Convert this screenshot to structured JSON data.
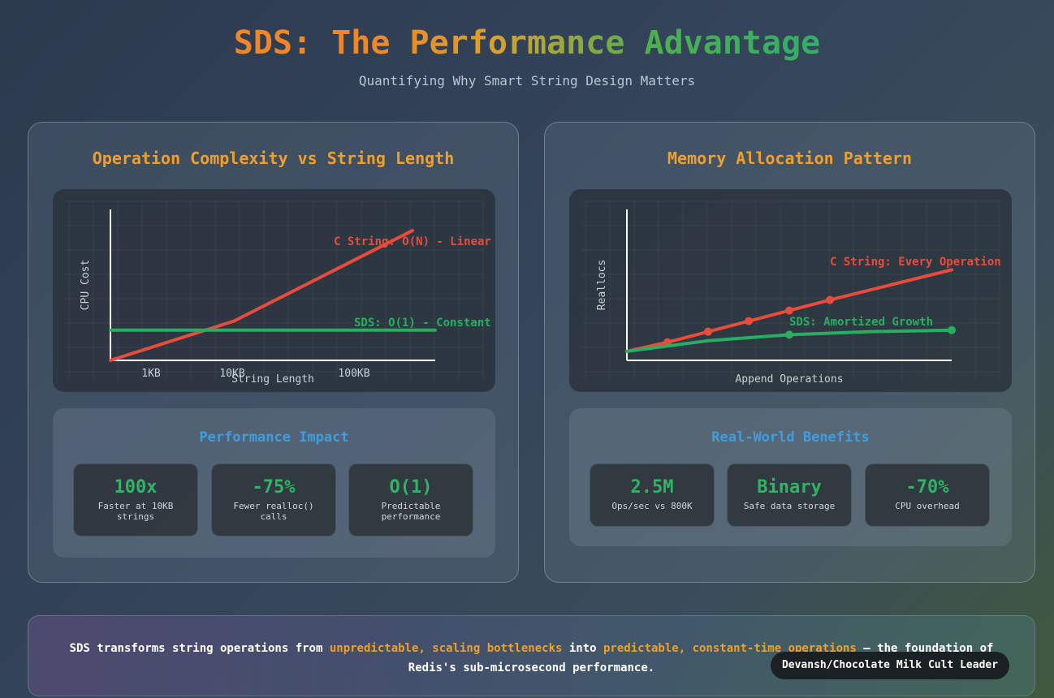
{
  "header": {
    "title": "SDS: The Performance Advantage",
    "subtitle": "Quantifying Why Smart String Design Matters"
  },
  "left_panel": {
    "title": "Operation Complexity vs String Length",
    "stats_title": "Performance Impact",
    "stats": [
      {
        "value": "100x",
        "label": "Faster at 10KB strings"
      },
      {
        "value": "-75%",
        "label": "Fewer realloc() calls"
      },
      {
        "value": "O(1)",
        "label": "Predictable performance"
      }
    ]
  },
  "right_panel": {
    "title": "Memory Allocation Pattern",
    "stats_title": "Real-World Benefits",
    "stats": [
      {
        "value": "2.5M",
        "label": "Ops/sec vs 800K"
      },
      {
        "value": "Binary",
        "label": "Safe data storage"
      },
      {
        "value": "-70%",
        "label": "CPU overhead"
      }
    ]
  },
  "footer": {
    "text_1": "SDS transforms string operations from ",
    "highlight_1": "unpredictable, scaling bottlenecks",
    "text_2": " into ",
    "highlight_2": "predictable, constant-time operations",
    "text_3": " — the foundation of Redis's sub-microsecond performance.",
    "badge": "Devansh/Chocolate Milk Cult Leader"
  },
  "colors": {
    "c_string": "#e74c3c",
    "sds": "#27ae60",
    "panel_title": "#f0a02a",
    "stats_title": "#3e9ee0"
  },
  "chart_data": [
    {
      "type": "line",
      "title": "",
      "xlabel": "String Length",
      "ylabel": "CPU Cost",
      "x_tick_labels": [
        "1KB",
        "10KB",
        "100KB"
      ],
      "xlim": [
        0,
        10
      ],
      "ylim": [
        0,
        10
      ],
      "grid": true,
      "series": [
        {
          "name": "C String: O(N) - Linear",
          "color": "#e74c3c",
          "x": [
            0,
            3.8,
            9.3
          ],
          "y": [
            0,
            2.6,
            8.6
          ]
        },
        {
          "name": "SDS: O(1) - Constant",
          "color": "#27ae60",
          "x": [
            0,
            10
          ],
          "y": [
            2,
            2
          ]
        }
      ]
    },
    {
      "type": "line",
      "title": "",
      "xlabel": "Append Operations",
      "ylabel": "Reallocs",
      "xlim": [
        0,
        10
      ],
      "ylim": [
        0,
        10
      ],
      "grid": true,
      "series": [
        {
          "name": "C String: Every Operation",
          "color": "#e74c3c",
          "markers": [
            1,
            2,
            3,
            4,
            5
          ],
          "x": [
            0,
            1.25,
            2.5,
            3.75,
            5,
            6.25,
            10
          ],
          "y": [
            0.6,
            1.2,
            1.9,
            2.6,
            3.3,
            4.0,
            6.0
          ]
        },
        {
          "name": "SDS: Amortized Growth",
          "color": "#27ae60",
          "markers": [
            2,
            4
          ],
          "x": [
            0,
            2.5,
            5,
            7.5,
            10
          ],
          "y": [
            0.6,
            1.3,
            1.7,
            1.9,
            2.0
          ]
        }
      ]
    }
  ]
}
